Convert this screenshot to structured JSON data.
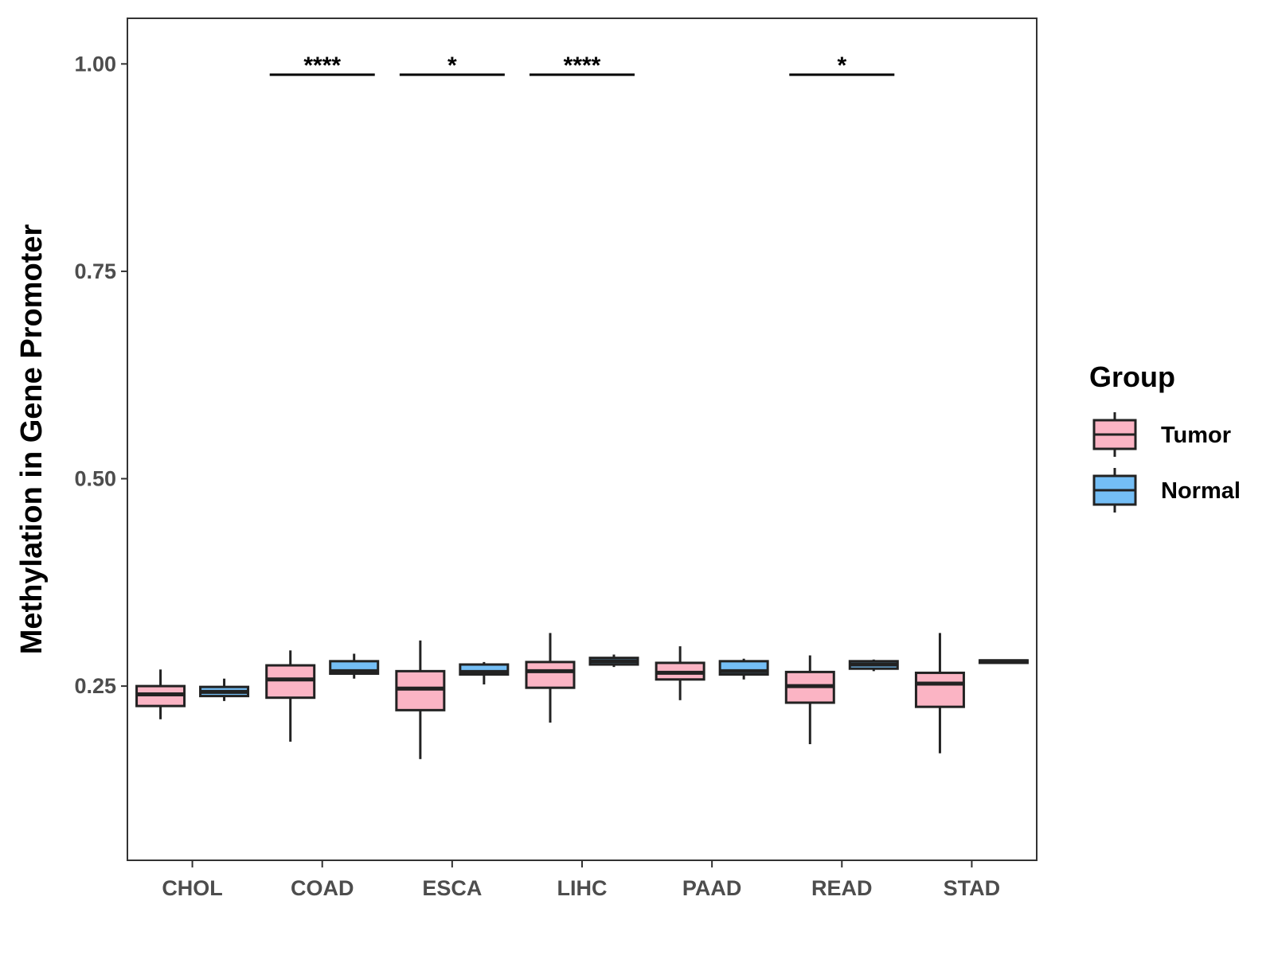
{
  "chart_data": {
    "type": "boxplot",
    "title": "",
    "xlabel": "",
    "ylabel": "Methylation in Gene Promoter",
    "ylim": [
      0.04,
      1.055
    ],
    "yticks": [
      0.25,
      0.5,
      0.75,
      1.0
    ],
    "ytick_labels": [
      "0.25",
      "0.50",
      "0.75",
      "1.00"
    ],
    "categories": [
      "CHOL",
      "COAD",
      "ESCA",
      "LIHC",
      "PAAD",
      "READ",
      "STAD"
    ],
    "legend": {
      "title": "Group",
      "position": "right"
    },
    "series": [
      {
        "name": "Tumor",
        "color": "#FBB4C4",
        "boxes": [
          {
            "min": 0.21,
            "q1": 0.226,
            "median": 0.24,
            "q3": 0.25,
            "max": 0.27
          },
          {
            "min": 0.183,
            "q1": 0.236,
            "median": 0.258,
            "q3": 0.275,
            "max": 0.293
          },
          {
            "min": 0.162,
            "q1": 0.221,
            "median": 0.247,
            "q3": 0.268,
            "max": 0.305
          },
          {
            "min": 0.206,
            "q1": 0.248,
            "median": 0.268,
            "q3": 0.279,
            "max": 0.314
          },
          {
            "min": 0.233,
            "q1": 0.258,
            "median": 0.266,
            "q3": 0.278,
            "max": 0.298
          },
          {
            "min": 0.18,
            "q1": 0.23,
            "median": 0.25,
            "q3": 0.267,
            "max": 0.287
          },
          {
            "min": 0.169,
            "q1": 0.225,
            "median": 0.253,
            "q3": 0.266,
            "max": 0.314
          }
        ]
      },
      {
        "name": "Normal",
        "color": "#74BEF5",
        "boxes": [
          {
            "min": 0.232,
            "q1": 0.238,
            "median": 0.243,
            "q3": 0.249,
            "max": 0.259
          },
          {
            "min": 0.259,
            "q1": 0.265,
            "median": 0.268,
            "q3": 0.28,
            "max": 0.289
          },
          {
            "min": 0.252,
            "q1": 0.264,
            "median": 0.267,
            "q3": 0.276,
            "max": 0.279
          },
          {
            "min": 0.273,
            "q1": 0.276,
            "median": 0.28,
            "q3": 0.284,
            "max": 0.288
          },
          {
            "min": 0.258,
            "q1": 0.264,
            "median": 0.268,
            "q3": 0.28,
            "max": 0.283
          },
          {
            "min": 0.268,
            "q1": 0.271,
            "median": 0.276,
            "q3": 0.28,
            "max": 0.282
          },
          {
            "min": 0.277,
            "q1": 0.278,
            "median": 0.28,
            "q3": 0.281,
            "max": 0.282
          }
        ]
      }
    ],
    "annotations": [
      {
        "category": "COAD",
        "label": "****",
        "y": 0.987
      },
      {
        "category": "ESCA",
        "label": "*",
        "y": 0.987
      },
      {
        "category": "LIHC",
        "label": "****",
        "y": 0.987
      },
      {
        "category": "READ",
        "label": "*",
        "y": 0.987
      }
    ]
  }
}
